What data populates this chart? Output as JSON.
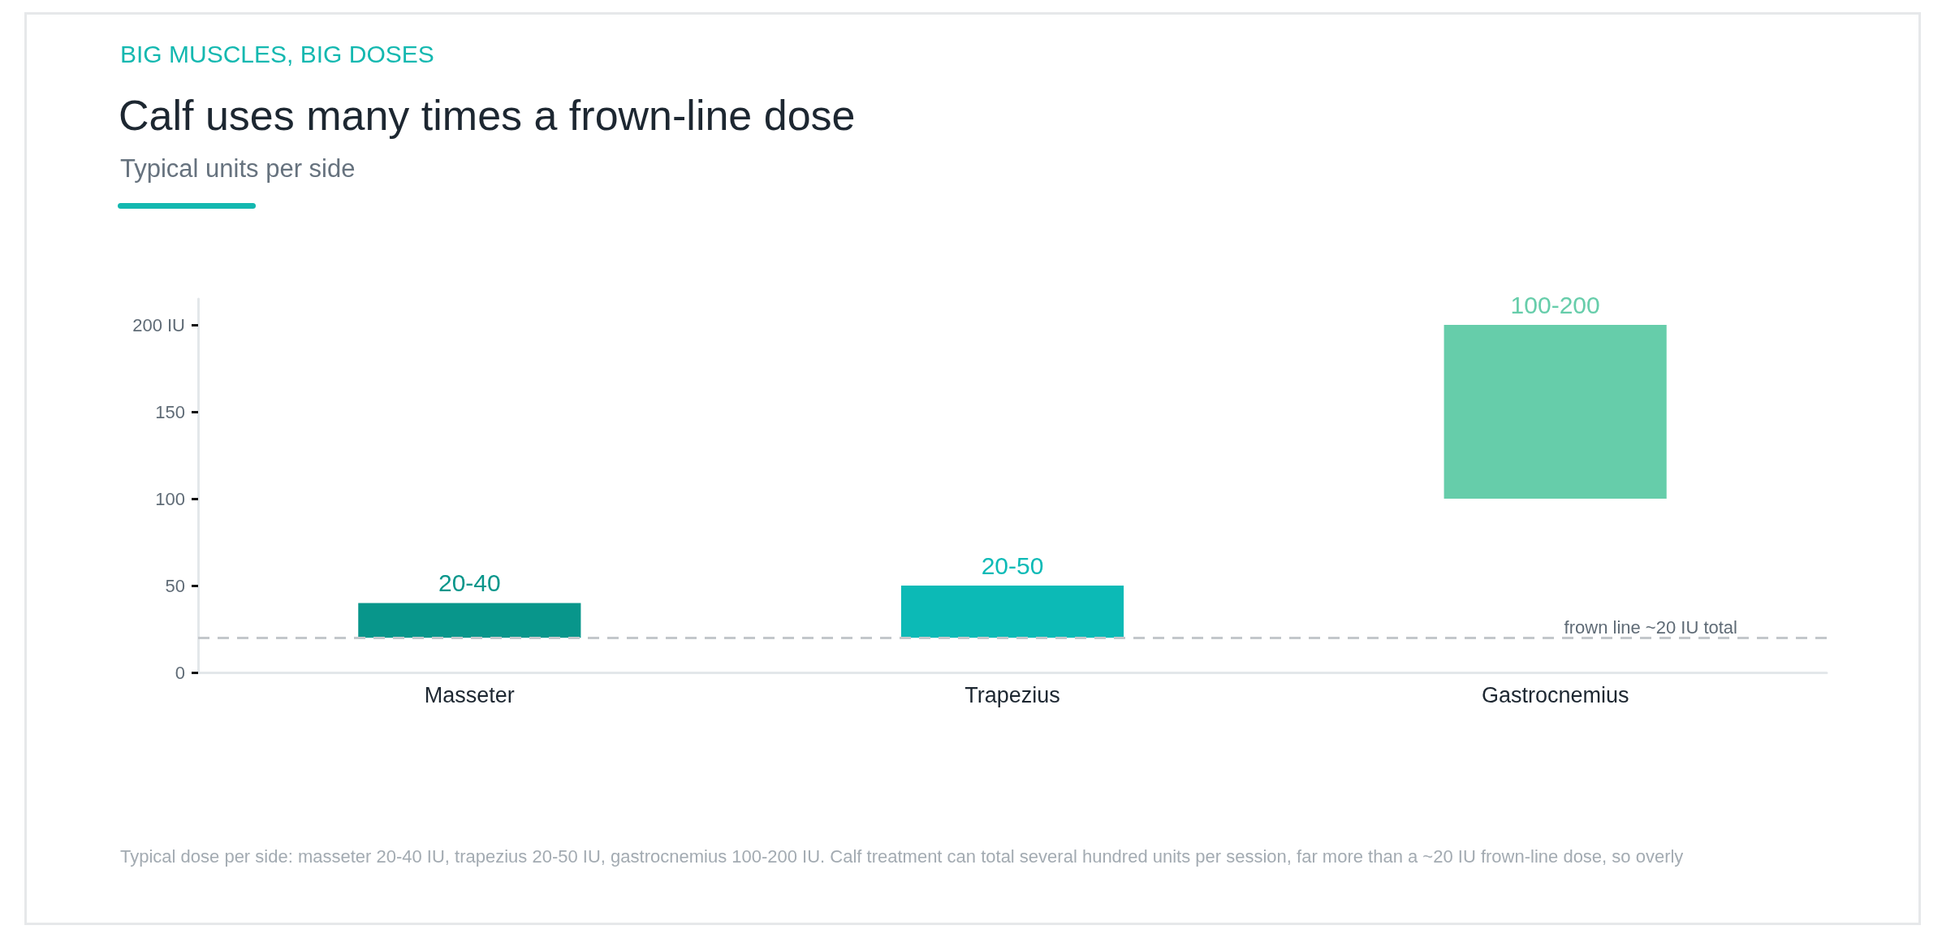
{
  "chart_data": {
    "type": "bar",
    "title": "Calf uses many times a frown-line dose",
    "subtitle": "Typical units per side",
    "annotations": [
      "BIG MUSCLES, BIG DOSES",
      "Typical dose per side: masseter 20-40 IU, trapezius 20-50 IU, gastrocnemius 100-200 IU. Calf treatment can total several hundred units per session, far more than a ~20 IU frown-line dose, so overly"
    ],
    "categories": [
      "Masseter",
      "Trapezius",
      "Gastrocnemius"
    ],
    "base": [
      20,
      20,
      100
    ],
    "values": [
      20,
      30,
      100
    ],
    "value_labels": [
      "20-40",
      "20-50",
      "100-200"
    ],
    "colors": [
      "#08968b",
      "#0cbab6",
      "#66cdaa"
    ],
    "ylim": [
      0,
      215
    ],
    "yticks": [
      0,
      50,
      100,
      150,
      {
        "value": 200,
        "label": "200 IU"
      }
    ],
    "ref_lines": [
      {
        "axis": "y",
        "value": 20,
        "label": "frown line ~20 IU total",
        "color": "#c3c7cb",
        "line_style": "dashed"
      }
    ],
    "grid": false
  }
}
